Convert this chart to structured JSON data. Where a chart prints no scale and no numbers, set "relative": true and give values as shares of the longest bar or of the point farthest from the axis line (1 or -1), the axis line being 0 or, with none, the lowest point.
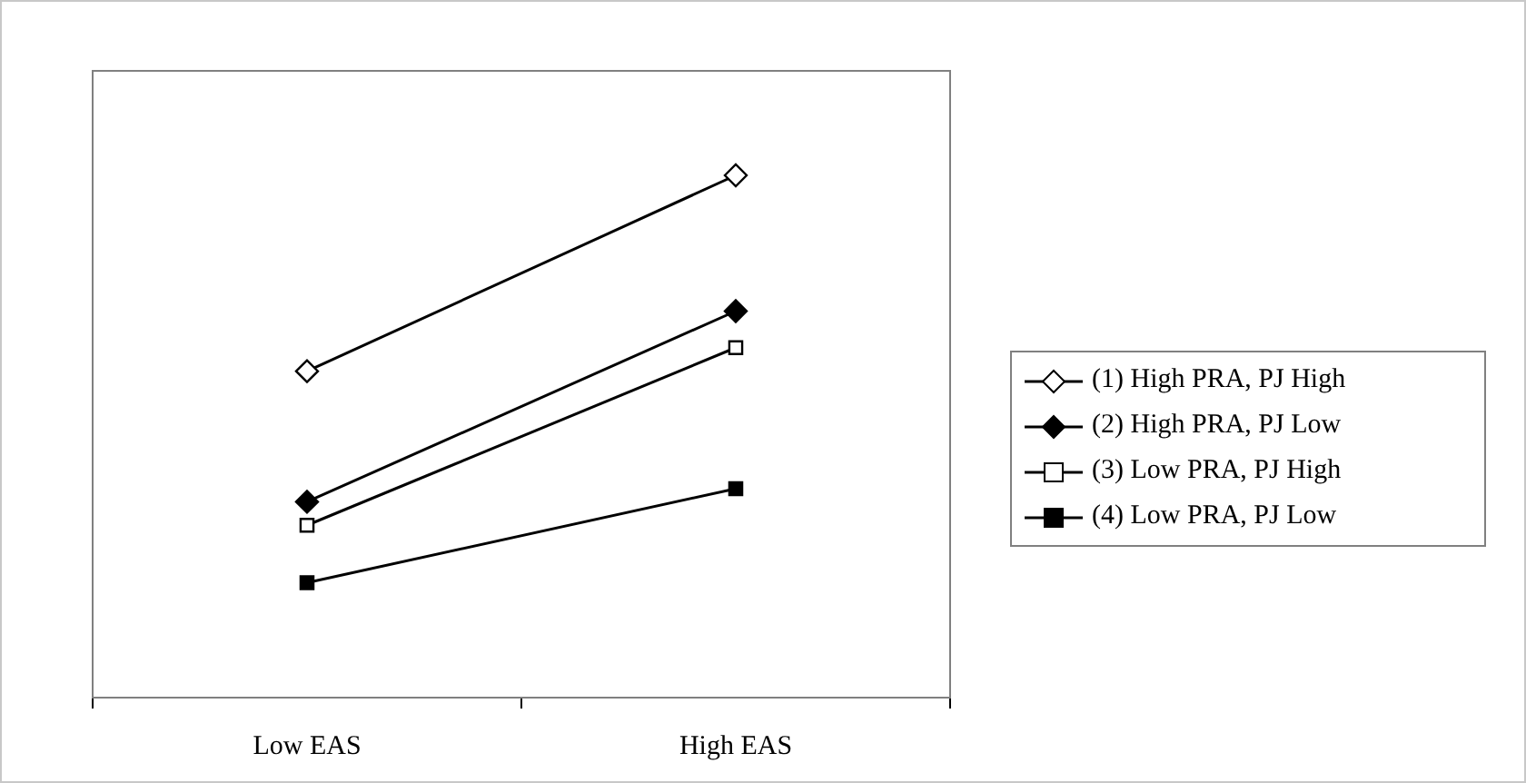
{
  "chart_data": {
    "type": "line",
    "relative": true,
    "categories": [
      "Low EAS",
      "High EAS"
    ],
    "legend": "right",
    "grid": false,
    "line_style": "solid",
    "series": [
      {
        "name": "(1) High PRA, PJ High",
        "color": "#000000",
        "marker": "diamond",
        "colors": [
          "#ffffff",
          "#ffffff"
        ],
        "values": [
          0.625,
          1
        ]
      },
      {
        "name": "(2) High PRA, PJ Low",
        "color": "#000000",
        "marker": "diamond",
        "colors": [
          "#000000",
          "#000000"
        ],
        "values": [
          0.375,
          0.74
        ]
      },
      {
        "name": "(3) Low PRA, PJ High",
        "color": "#000000",
        "marker": "square",
        "colors": [
          "#ffffff",
          "#ffffff"
        ],
        "values": [
          0.33,
          0.67
        ]
      },
      {
        "name": "(4) Low PRA, PJ Low",
        "color": "#000000",
        "marker": "square",
        "colors": [
          "#000000",
          "#000000"
        ],
        "values": [
          0.22,
          0.4
        ]
      }
    ]
  }
}
